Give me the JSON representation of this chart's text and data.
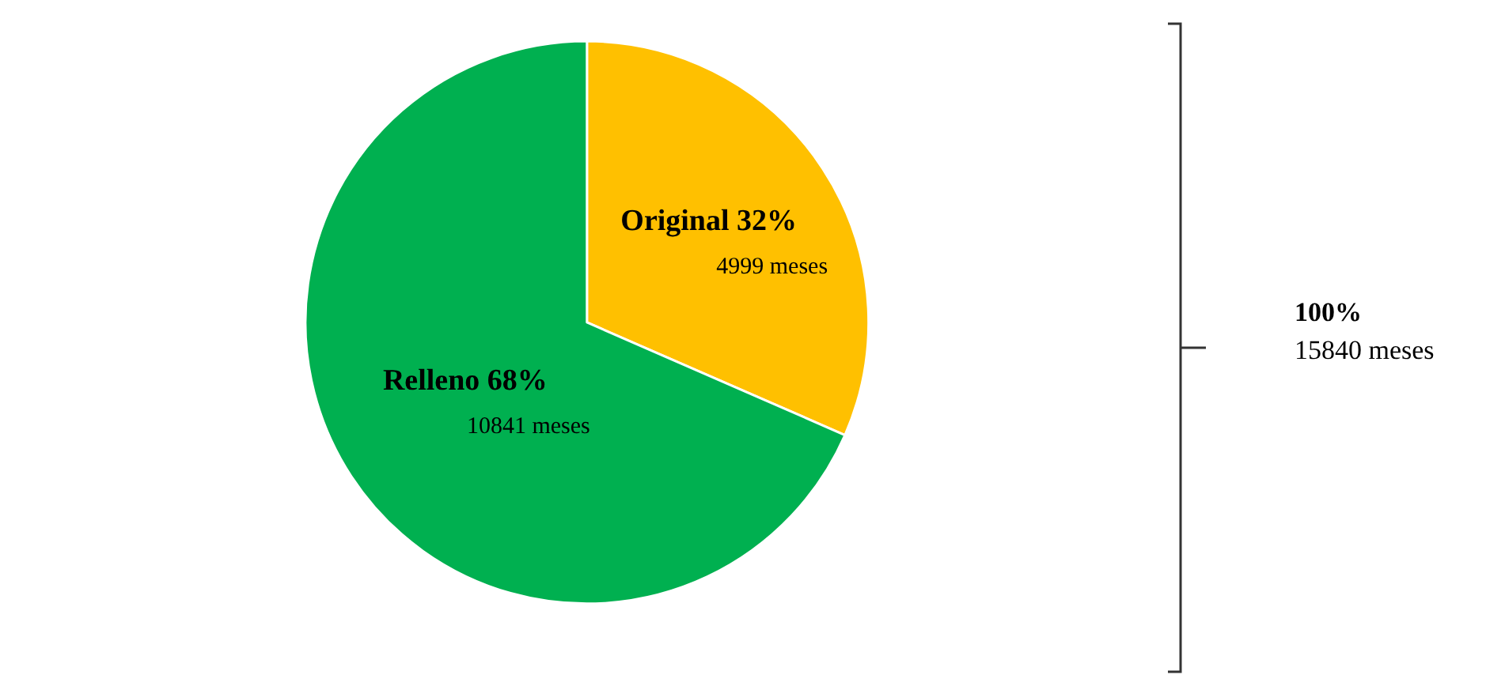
{
  "chart_data": {
    "type": "pie",
    "categories": [
      "Original 32%",
      "Relleno 68%"
    ],
    "values": [
      4999,
      10841
    ],
    "colors": [
      "#ffc000",
      "#00b050"
    ],
    "value_labels": [
      "4999 meses",
      "10841 meses"
    ],
    "annotations": [
      "100%",
      "15840 meses"
    ],
    "legend": false
  }
}
